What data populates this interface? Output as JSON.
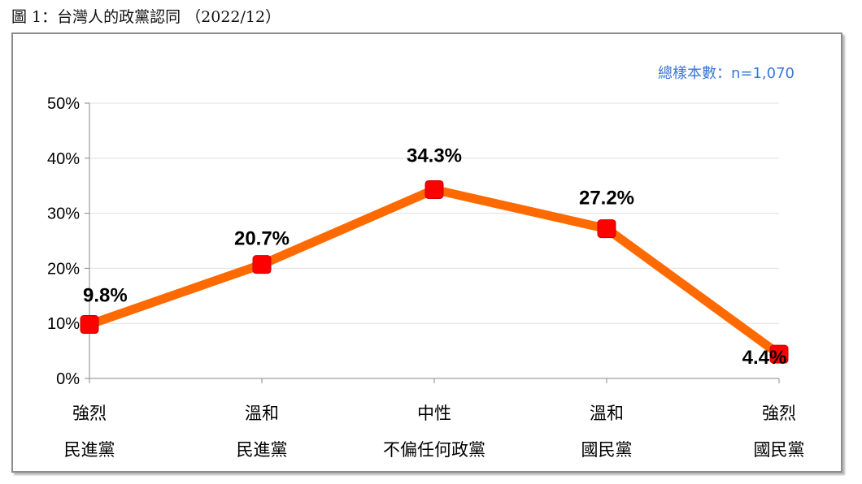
{
  "caption": "圖 1：台灣人的政黨認同 （2022/12）",
  "sample_note": "總樣本數：n=1,070",
  "colors": {
    "line": "#ff6a00",
    "marker": "#ff0000",
    "note": "#3b78d6",
    "axis": "#888888",
    "grid": "#e0e0e0"
  },
  "chart_data": {
    "type": "line",
    "title": "",
    "xlabel": "",
    "ylabel": "",
    "categories": [
      [
        "強烈",
        "民進黨"
      ],
      [
        "溫和",
        "民進黨"
      ],
      [
        "中性",
        "不偏任何政黨"
      ],
      [
        "溫和",
        "國民黨"
      ],
      [
        "強烈",
        "國民黨"
      ]
    ],
    "values": [
      9.8,
      20.7,
      34.3,
      27.2,
      4.4
    ],
    "data_labels": [
      "9.8%",
      "20.7%",
      "34.3%",
      "27.2%",
      "4.4%"
    ],
    "ylim": [
      0,
      50
    ],
    "yticks": [
      0,
      10,
      20,
      30,
      40,
      50
    ],
    "ytick_labels": [
      "0%",
      "10%",
      "20%",
      "30%",
      "40%",
      "50%"
    ],
    "grid": true,
    "legend": "none"
  }
}
